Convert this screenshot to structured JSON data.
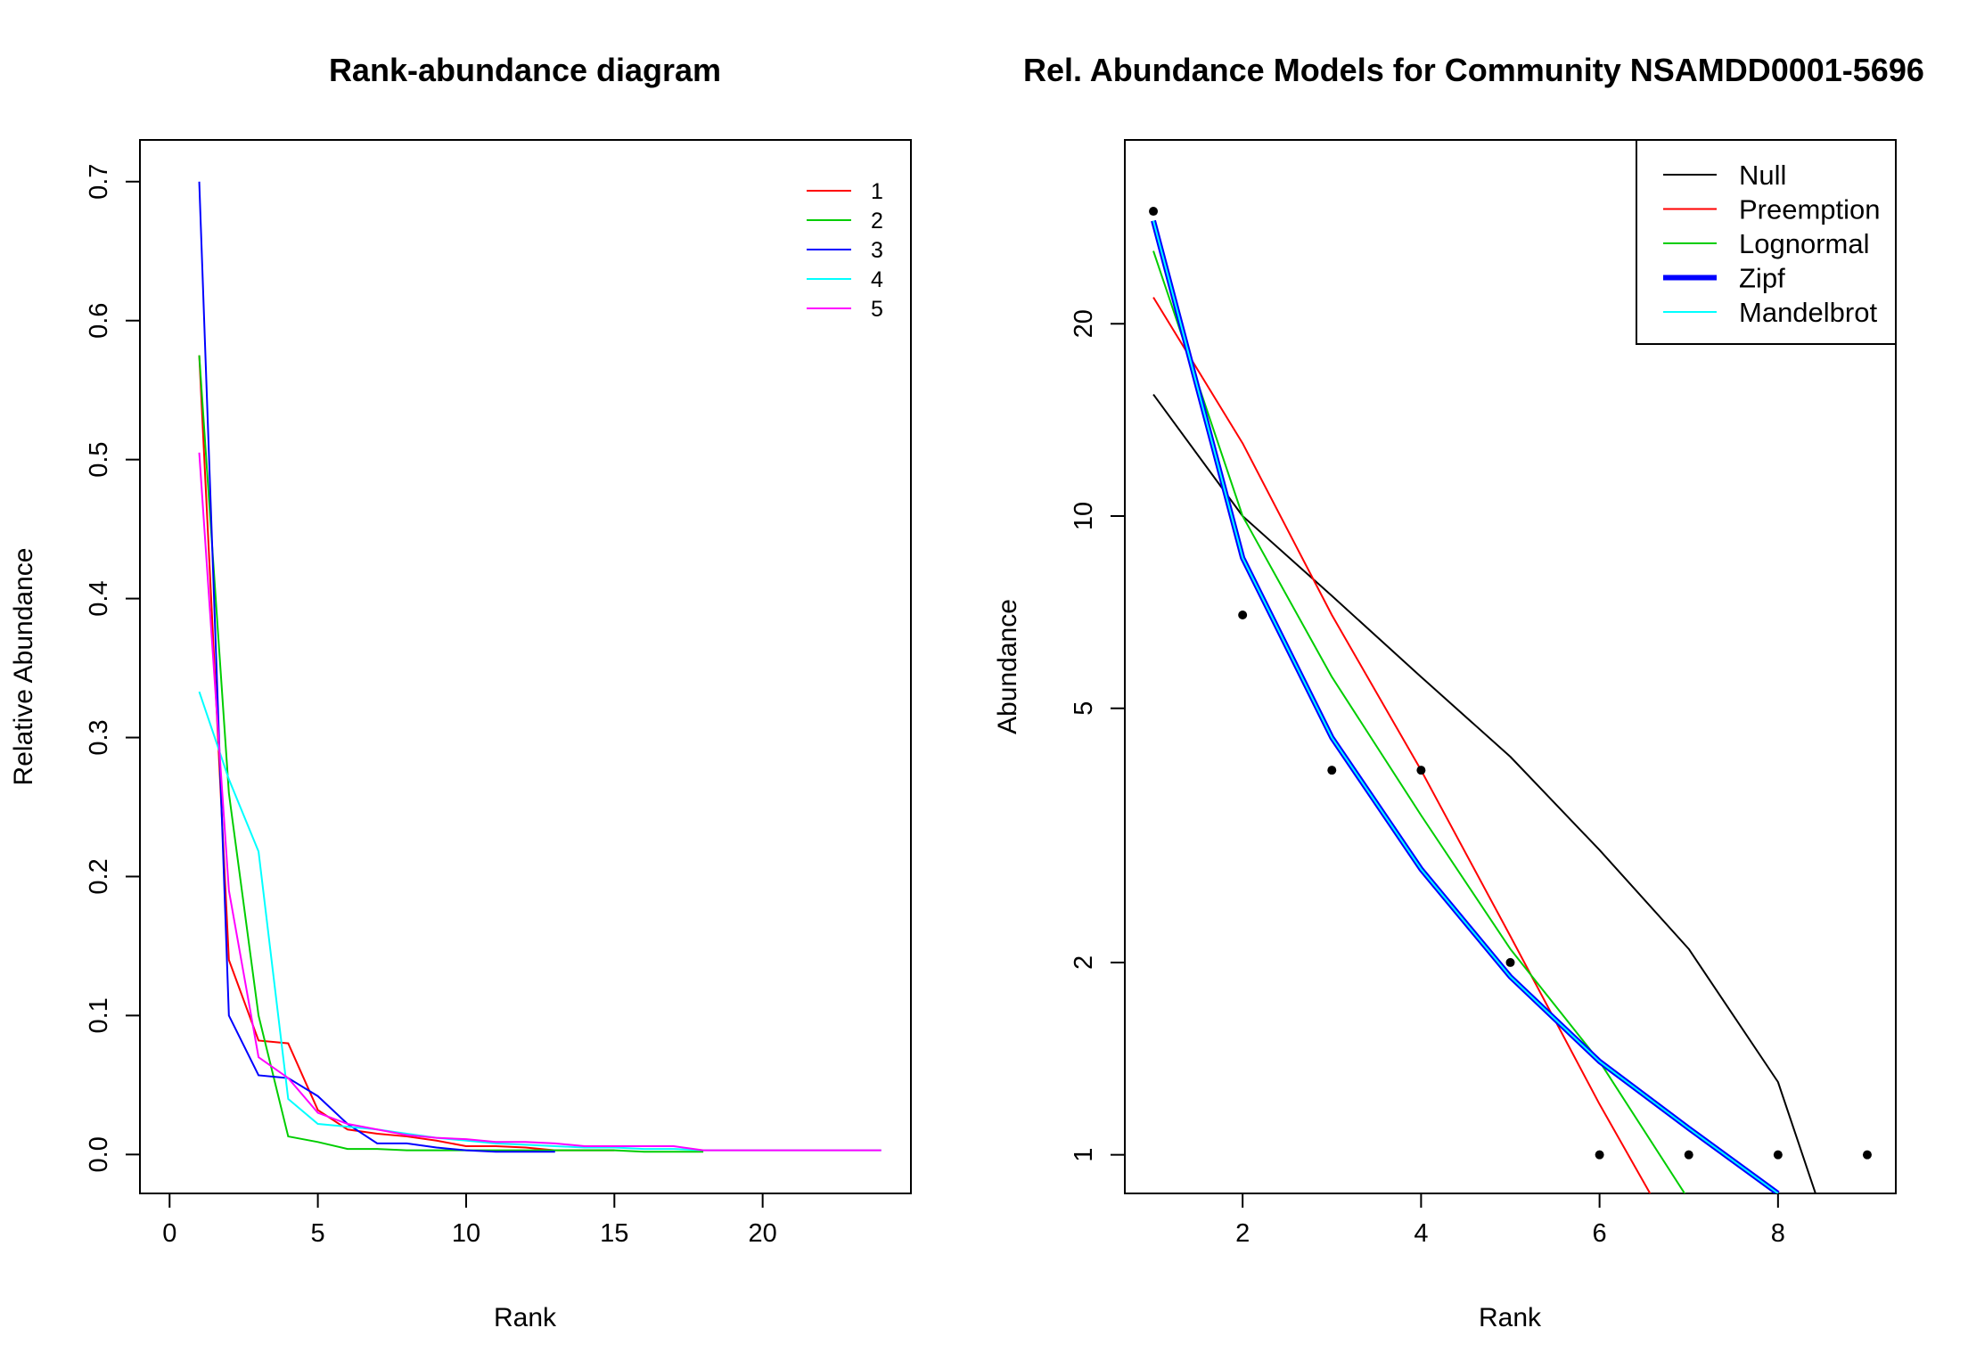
{
  "chart_data": [
    {
      "type": "line",
      "title": "Rank-abundance diagram",
      "xlabel": "Rank",
      "ylabel": "Relative Abundance",
      "xlim": [
        -1,
        25
      ],
      "ylim": [
        -0.028,
        0.73
      ],
      "xticks": [
        0,
        5,
        10,
        15,
        20
      ],
      "yticks": [
        0.0,
        0.1,
        0.2,
        0.3,
        0.4,
        0.5,
        0.6,
        0.7
      ],
      "ytick_labels": [
        "0.0",
        "0.1",
        "0.2",
        "0.3",
        "0.4",
        "0.5",
        "0.6",
        "0.7"
      ],
      "legend_position": "top-right",
      "series": [
        {
          "name": "1",
          "color": "#ff0000",
          "x": [
            1,
            2,
            3,
            4,
            5,
            6,
            7,
            8,
            9,
            10,
            11,
            12,
            13,
            14,
            15
          ],
          "values": [
            0.575,
            0.14,
            0.082,
            0.08,
            0.032,
            0.018,
            0.015,
            0.013,
            0.01,
            0.006,
            0.006,
            0.005,
            0.003,
            0.003,
            0.003
          ]
        },
        {
          "name": "2",
          "color": "#00cd00",
          "x": [
            1,
            2,
            3,
            4,
            5,
            6,
            7,
            8,
            9,
            10,
            11,
            12,
            13,
            14,
            15,
            16,
            17,
            18
          ],
          "values": [
            0.575,
            0.26,
            0.1,
            0.013,
            0.009,
            0.004,
            0.004,
            0.003,
            0.003,
            0.003,
            0.003,
            0.003,
            0.003,
            0.003,
            0.003,
            0.002,
            0.002,
            0.002
          ]
        },
        {
          "name": "3",
          "color": "#0000ff",
          "x": [
            1,
            2,
            3,
            4,
            5,
            6,
            7,
            8,
            9,
            10,
            11,
            12,
            13
          ],
          "values": [
            0.7,
            0.1,
            0.057,
            0.055,
            0.042,
            0.022,
            0.008,
            0.008,
            0.005,
            0.003,
            0.002,
            0.002,
            0.002
          ]
        },
        {
          "name": "4",
          "color": "#00ffff",
          "x": [
            1,
            2,
            3,
            4,
            5,
            6,
            7,
            8,
            9,
            10,
            11,
            12,
            13,
            14,
            15,
            16,
            17,
            18,
            19,
            20,
            21,
            22,
            23,
            24
          ],
          "values": [
            0.333,
            0.27,
            0.218,
            0.04,
            0.022,
            0.02,
            0.018,
            0.015,
            0.012,
            0.01,
            0.008,
            0.007,
            0.006,
            0.005,
            0.005,
            0.004,
            0.004,
            0.003,
            0.003,
            0.003,
            0.003,
            0.003,
            0.003,
            0.003
          ]
        },
        {
          "name": "5",
          "color": "#ff00ff",
          "x": [
            1,
            2,
            3,
            4,
            5,
            6,
            7,
            8,
            9,
            10,
            11,
            12,
            13,
            14,
            15,
            16,
            17,
            18,
            19,
            20,
            21,
            22,
            23,
            24
          ],
          "values": [
            0.505,
            0.19,
            0.07,
            0.055,
            0.03,
            0.022,
            0.018,
            0.014,
            0.012,
            0.011,
            0.009,
            0.009,
            0.008,
            0.006,
            0.006,
            0.006,
            0.006,
            0.003,
            0.003,
            0.003,
            0.003,
            0.003,
            0.003,
            0.003
          ]
        }
      ]
    },
    {
      "type": "line",
      "title": "Rel. Abundance Models for Community NSAMDD0001-5696",
      "xlabel": "Rank",
      "ylabel": "Abundance",
      "xlim": [
        0.68,
        9.32
      ],
      "ylim": [
        0.87,
        38.8
      ],
      "yscale": "log",
      "xticks": [
        2,
        4,
        6,
        8
      ],
      "yticks": [
        1,
        2,
        5,
        10,
        20
      ],
      "legend_position": "top-right",
      "points": {
        "x": [
          1,
          2,
          3,
          4,
          5,
          6,
          7,
          8,
          9
        ],
        "values": [
          30,
          7,
          4,
          4,
          2,
          1,
          1,
          1,
          1
        ]
      },
      "series": [
        {
          "name": "Null",
          "color": "#000000",
          "x": [
            1,
            2,
            3,
            4,
            5,
            6,
            7,
            8,
            9
          ],
          "values": [
            15.5,
            10.0,
            7.5,
            5.6,
            4.2,
            3.0,
            2.1,
            1.3,
            0.5
          ]
        },
        {
          "name": "Preemption",
          "color": "#ff0000",
          "x": [
            1,
            2,
            3,
            4,
            5,
            6,
            7
          ],
          "values": [
            22.0,
            13.0,
            7.0,
            4.0,
            2.2,
            1.2,
            0.68
          ]
        },
        {
          "name": "Lognormal",
          "color": "#00cd00",
          "x": [
            1,
            2,
            3,
            4,
            5,
            6,
            7
          ],
          "values": [
            26.0,
            10.0,
            5.6,
            3.4,
            2.1,
            1.4,
            0.85
          ]
        },
        {
          "name": "Zipf",
          "color": "#0000ff",
          "x": [
            1,
            2,
            3,
            4,
            5,
            6,
            7,
            8
          ],
          "values": [
            29.0,
            8.6,
            4.5,
            2.8,
            1.9,
            1.4,
            1.1,
            0.87
          ]
        },
        {
          "name": "Mandelbrot",
          "color": "#00ffff",
          "x": [
            1,
            2,
            3,
            4,
            5,
            6,
            7,
            8
          ],
          "values": [
            29.0,
            8.6,
            4.5,
            2.8,
            1.9,
            1.4,
            1.1,
            0.87
          ]
        }
      ]
    }
  ]
}
